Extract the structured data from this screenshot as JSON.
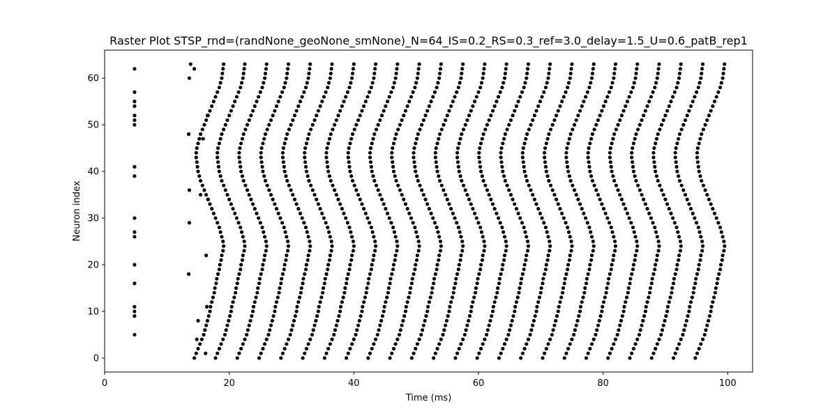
{
  "chart_data": {
    "type": "scatter",
    "title": "Raster Plot STSP_rnd=(randNone_geoNone_smNone)_N=64_IS=0.2_RS=0.3_ref=3.0_delay=1.5_U=0.6_patB_rep1",
    "xlabel": "Time (ms)",
    "ylabel": "Neuron index",
    "xlim": [
      0,
      104
    ],
    "ylim": [
      -3,
      66
    ],
    "xticks": [
      0,
      20,
      40,
      60,
      80,
      100
    ],
    "yticks": [
      0,
      10,
      20,
      30,
      40,
      50,
      60
    ],
    "xtick_labels": [
      "0",
      "20",
      "40",
      "60",
      "80",
      "100"
    ],
    "ytick_labels": [
      "0",
      "10",
      "20",
      "30",
      "40",
      "50",
      "60"
    ],
    "grid": false,
    "legend": "none",
    "marker_color": "#000000",
    "series": [
      {
        "stimulus": {
          "time": 4.8,
          "neurons": [
            5,
            9,
            10,
            11,
            16,
            20,
            26,
            27,
            30,
            39,
            41,
            50,
            51,
            52,
            54,
            55,
            57,
            62
          ]
        },
        "spontaneous": [
          {
            "x": 13.5,
            "y": 18
          },
          {
            "x": 13.6,
            "y": 29
          },
          {
            "x": 13.6,
            "y": 36
          },
          {
            "x": 13.5,
            "y": 48
          },
          {
            "x": 13.6,
            "y": 60
          },
          {
            "x": 13.8,
            "y": 63
          },
          {
            "x": 14.4,
            "y": 62
          },
          {
            "x": 14.8,
            "y": 4
          },
          {
            "x": 15.0,
            "y": 8
          },
          {
            "x": 15.4,
            "y": 35
          },
          {
            "x": 15.8,
            "y": 47
          },
          {
            "x": 16.2,
            "y": 1
          },
          {
            "x": 16.4,
            "y": 11
          },
          {
            "x": 16.5,
            "y": 52
          },
          {
            "x": 16.6,
            "y": 34
          },
          {
            "x": 16.3,
            "y": 22
          }
        ],
        "waves": {
          "start_times": [
            14.4,
            17.8,
            21.3,
            24.8,
            28.3,
            31.8,
            35.3,
            38.8,
            42.3,
            45.8,
            49.3,
            52.8,
            56.3,
            59.8,
            63.3,
            66.8,
            70.3,
            73.8,
            77.3,
            80.8,
            84.3,
            87.8,
            91.3,
            94.8
          ],
          "neuron_delay_ms": [
            0.0,
            0.3,
            0.6,
            0.9,
            1.2,
            1.5,
            1.7,
            1.9,
            2.1,
            2.3,
            2.5,
            2.6,
            2.8,
            3.0,
            3.2,
            3.3,
            3.5,
            3.6,
            3.8,
            4.0,
            4.1,
            4.3,
            4.4,
            4.6,
            4.7,
            4.6,
            4.4,
            4.2,
            4.0,
            3.7,
            3.4,
            3.1,
            2.8,
            2.5,
            2.2,
            1.9,
            1.6,
            1.3,
            1.0,
            0.8,
            0.6,
            0.5,
            0.4,
            0.3,
            0.3,
            0.4,
            0.6,
            0.8,
            1.0,
            1.3,
            1.6,
            1.9,
            2.2,
            2.5,
            2.8,
            3.1,
            3.4,
            3.7,
            4.0,
            4.2,
            4.4,
            4.5,
            4.6,
            4.7
          ]
        }
      }
    ]
  }
}
